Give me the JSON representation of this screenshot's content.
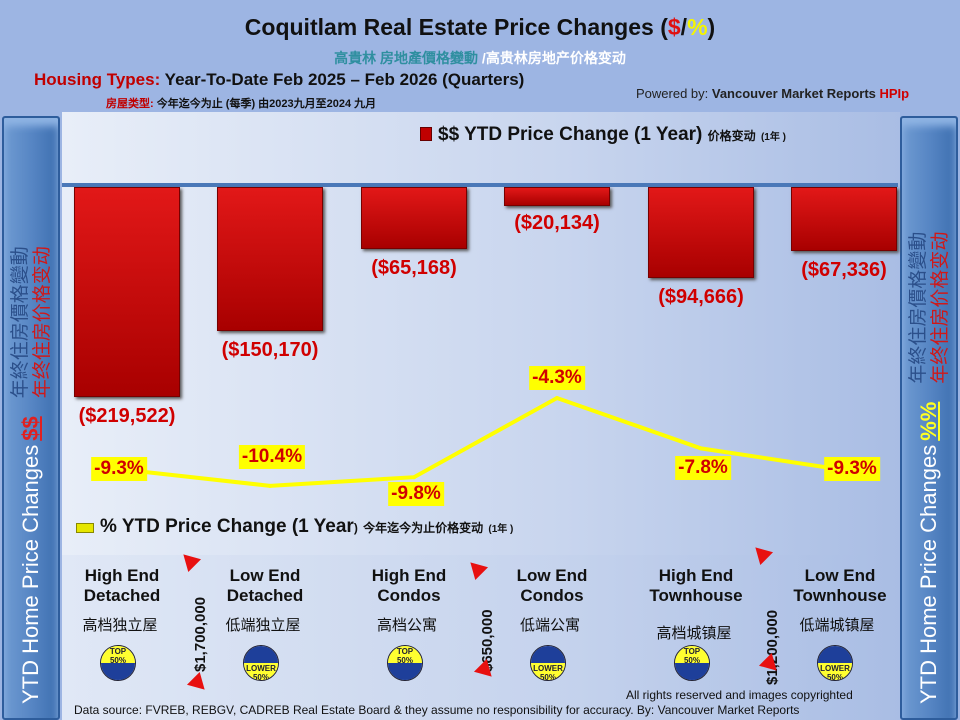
{
  "header": {
    "title": "Coquitlam Real Estate Price Changes (",
    "title_dollar": "$",
    "title_slash": "/",
    "title_pct": "%",
    "title_end": ")",
    "subtitle_trad": "高貴林 房地產價格變動",
    "subtitle_simp": " /高贵林房地产价格变动",
    "housing_label": "Housing Types:",
    "housing_text": " Year-To-Date Feb 2025 – Feb 2026 (Quarters)",
    "housing_cn_label": "房屋类型:",
    "housing_cn_text": " 今年迄今为止  (每季) 由2023九月至2024 九月",
    "powered_label": "Powered by: ",
    "powered_name": "Vancouver Market Reports ",
    "powered_brand": "HPIp"
  },
  "side_left": {
    "en": "YTD Home Price Changes ",
    "symbol": "$$",
    "cn_trad": "年終住房價格變動",
    "cn_simp": "年终住房价格变动"
  },
  "side_right": {
    "en": "YTD Home Price  Changes ",
    "symbol": "%%",
    "cn_trad": "年終住房價格變動",
    "cn_simp": "年终住房价格变动"
  },
  "chart_data": {
    "type": "bar+line",
    "categories": [
      "High End Detached",
      "Low End Detached",
      "High End Condos",
      "Low End Condos",
      "High End Townhouse",
      "Low End Townhouse"
    ],
    "series": [
      {
        "name": "$$ YTD Price Change (1 Year)",
        "name_cn": "价格变动",
        "name_cn_suffix": "(1年 )",
        "type": "bar",
        "values": [
          -219522,
          -150170,
          -65168,
          -20134,
          -94666,
          -67336
        ],
        "labels": [
          "($219,522)",
          "($150,170)",
          "($65,168)",
          "($20,134)",
          "($94,666)",
          "($67,336)"
        ],
        "color": "#d01010"
      },
      {
        "name": "% YTD Price Change (1 Year",
        "name_tail": ")",
        "name_cn": "今年迄今为止价格变动",
        "name_cn_suffix": "(1年 )",
        "type": "line",
        "values": [
          -9.3,
          -10.4,
          -9.8,
          -4.3,
          -7.8,
          -9.3
        ],
        "labels": [
          "-9.3%",
          "-10.4%",
          "-9.8%",
          "-4.3%",
          "-7.8%",
          "-9.3%"
        ],
        "color": "#ffff00"
      }
    ]
  },
  "categories_cn": [
    "高档独立屋",
    "低端独立屋",
    "高档公寓",
    "低端公寓",
    "高档城镇屋",
    "低端城镇屋"
  ],
  "badges": [
    {
      "l1": "TOP",
      "l2": "50%"
    },
    {
      "l1": "LOWER",
      "l2": "50%"
    },
    {
      "l1": "TOP",
      "l2": "50%"
    },
    {
      "l1": "LOWER",
      "l2": "50%"
    },
    {
      "l1": "TOP",
      "l2": "50%"
    },
    {
      "l1": "LOWER",
      "l2": "50%"
    }
  ],
  "thresholds": [
    "$1,700,000",
    "$650,000",
    "$1,200,000"
  ],
  "footer": {
    "rights": "All rights reserved and  images copyrighted",
    "source": "Data source: FVREB, REBGV, CADREB Real Estate Board & they assume no responsibility for accuracy. By: Vancouver Market Reports"
  }
}
